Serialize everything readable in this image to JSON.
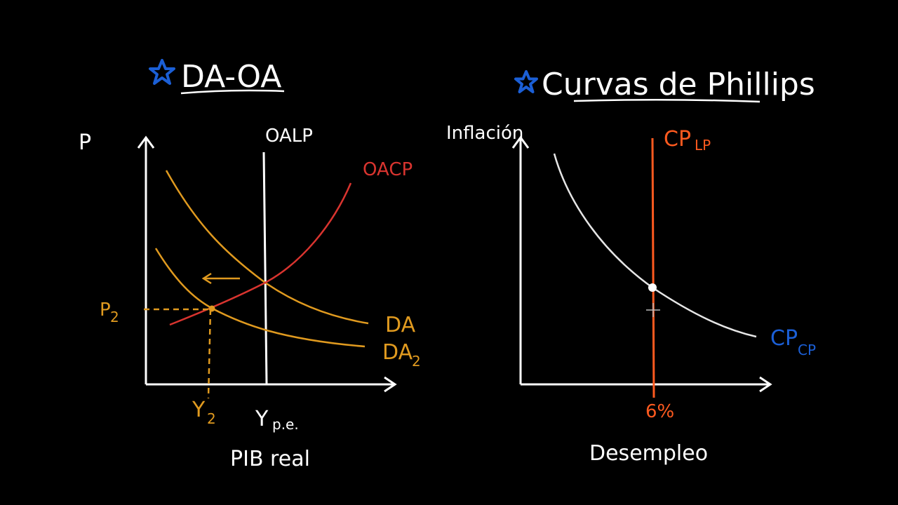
{
  "colors": {
    "background": "#000000",
    "white": "#ffffff",
    "orange": "#e09a1f",
    "red": "#d9342f",
    "blue": "#1b5fd6",
    "orange_red": "#ff5a1f",
    "gray_curve": "#e6e6e6"
  },
  "left_diagram": {
    "title": "DA-OA",
    "star_icon": "star-icon",
    "y_axis_label": "P",
    "x_axis_label": "PIB real",
    "lras_label": "OALP",
    "sras_label": "OACP",
    "ad1_label": "DA",
    "ad2_label": "DA",
    "ad2_subscript": "2",
    "price2_label": "P",
    "price2_subscript": "2",
    "output2_label": "Y",
    "output2_subscript": "2",
    "potential_output_label": "Y",
    "potential_output_subscript": "p.e."
  },
  "right_diagram": {
    "title": "Curvas de Phillips",
    "star_icon": "star-icon",
    "y_axis_label": "Inflación",
    "x_axis_label": "Desempleo",
    "lr_label": "CP",
    "lr_subscript": "LP",
    "sr_label": "CP",
    "sr_subscript": "CP",
    "natural_rate_label": "6%"
  }
}
